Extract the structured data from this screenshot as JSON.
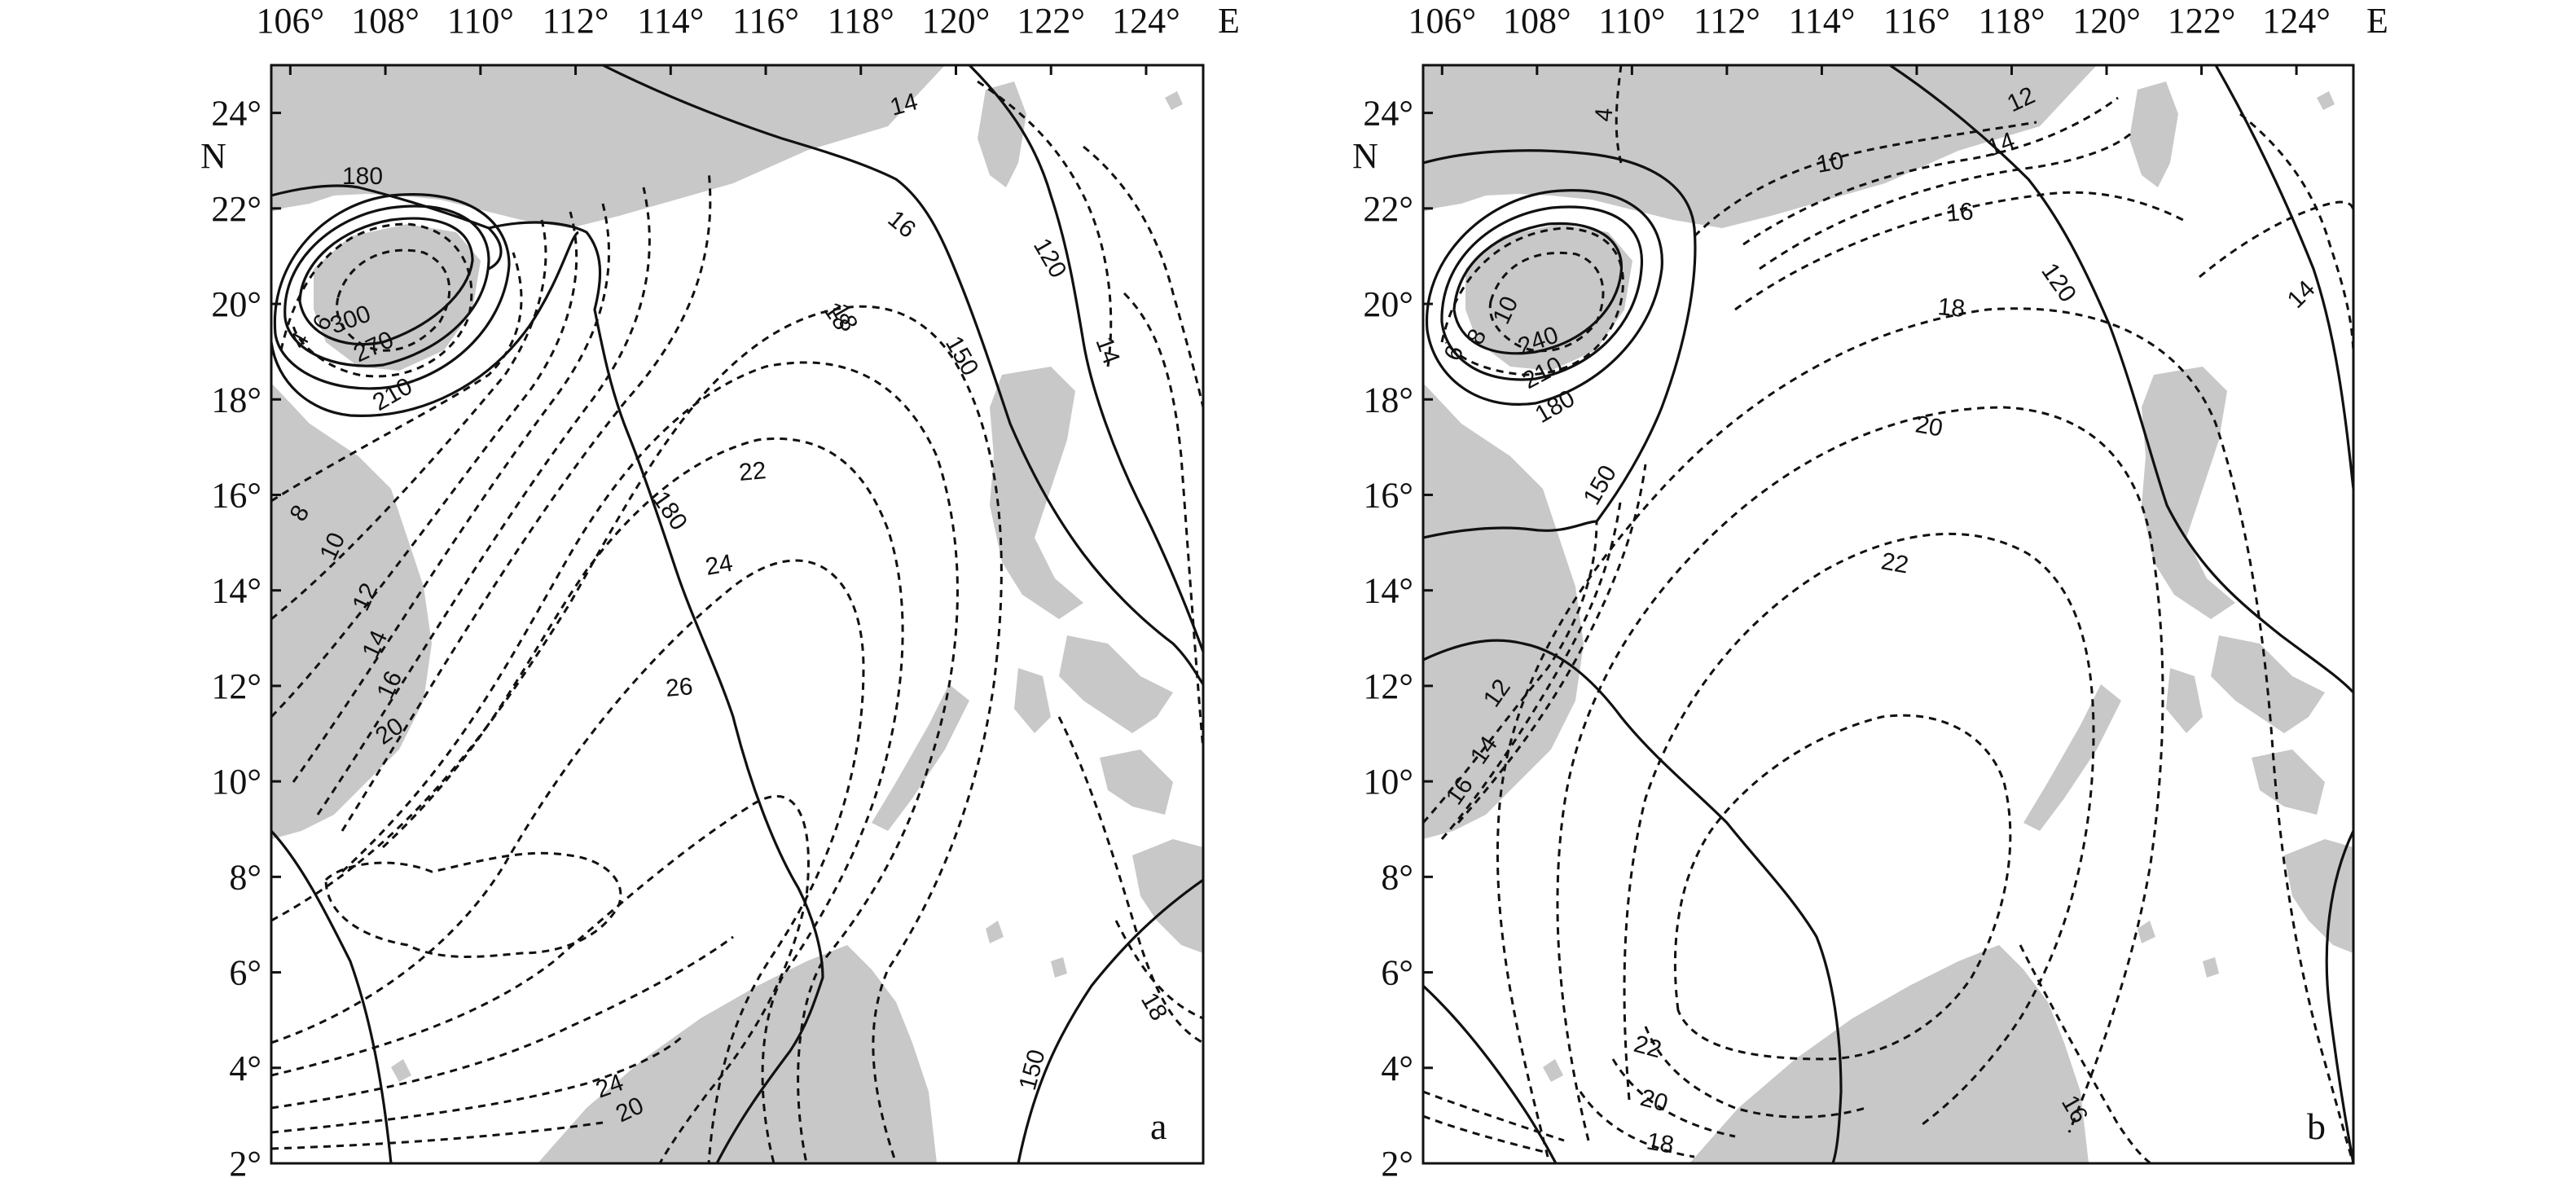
{
  "figure": {
    "panels": [
      {
        "id": "a",
        "panel_label": "a",
        "x_axis": {
          "labels": [
            "106°",
            "108°",
            "110°",
            "112°",
            "114°",
            "116°",
            "118°",
            "120°",
            "122°",
            "124°"
          ],
          "values": [
            106,
            108,
            110,
            112,
            114,
            116,
            118,
            120,
            122,
            124
          ],
          "unit_label": "E"
        },
        "y_axis": {
          "labels": [
            "2°",
            "4°",
            "6°",
            "8°",
            "10°",
            "12°",
            "14°",
            "16°",
            "18°",
            "20°",
            "22°",
            "24°"
          ],
          "values": [
            2,
            4,
            6,
            8,
            10,
            12,
            14,
            16,
            18,
            20,
            22,
            24
          ],
          "unit_label": "N"
        },
        "extent": {
          "lon": [
            105.6,
            125.2
          ],
          "lat": [
            2,
            25
          ]
        },
        "solid_contour_labels": [
          "180",
          "300",
          "270",
          "210",
          "150",
          "120",
          "180",
          "150"
        ],
        "dashed_contour_labels": [
          "4",
          "6",
          "8",
          "10",
          "12",
          "14",
          "16",
          "18",
          "20",
          "22",
          "24",
          "26",
          "20",
          "24",
          "14",
          "16",
          "18",
          "14",
          "18"
        ]
      },
      {
        "id": "b",
        "panel_label": "b",
        "x_axis": {
          "labels": [
            "106°",
            "108°",
            "110°",
            "112°",
            "114°",
            "116°",
            "118°",
            "120°",
            "122°",
            "124°"
          ],
          "values": [
            106,
            108,
            110,
            112,
            114,
            116,
            118,
            120,
            122,
            124
          ],
          "unit_label": "E"
        },
        "y_axis": {
          "labels": [
            "2°",
            "4°",
            "6°",
            "8°",
            "10°",
            "12°",
            "14°",
            "16°",
            "18°",
            "20°",
            "22°",
            "24°"
          ],
          "values": [
            2,
            4,
            6,
            8,
            10,
            12,
            14,
            16,
            18,
            20,
            22,
            24
          ],
          "unit_label": "N"
        },
        "extent": {
          "lon": [
            105.6,
            125.2
          ],
          "lat": [
            2,
            25
          ]
        },
        "solid_contour_labels": [
          "240",
          "210",
          "180",
          "150",
          "120"
        ],
        "dashed_contour_labels": [
          "4",
          "6",
          "8",
          "10",
          "10",
          "12",
          "14",
          "16",
          "18",
          "20",
          "22",
          "12",
          "14",
          "16",
          "14",
          "22",
          "20",
          "18",
          "16"
        ]
      }
    ],
    "colors": {
      "land": "#c8c8c8",
      "ink": "#111111",
      "sea": "#ffffff"
    }
  }
}
